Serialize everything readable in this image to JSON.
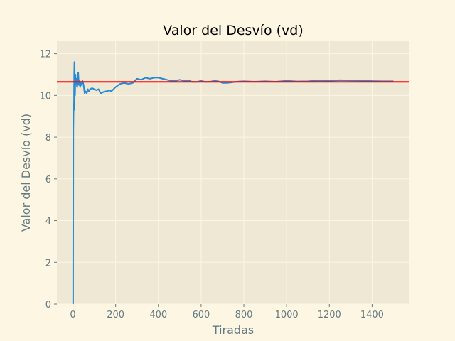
{
  "chart_data": {
    "type": "line",
    "title": "Valor del Desvío (vd)",
    "xlabel": "Tiradas",
    "ylabel": "Valor del Desvío (vd)",
    "xlim": [
      -75,
      1575
    ],
    "ylim": [
      0,
      12.6
    ],
    "xticks": [
      0,
      200,
      400,
      600,
      800,
      1000,
      1200,
      1400
    ],
    "yticks": [
      0,
      2,
      4,
      6,
      8,
      10,
      12
    ],
    "grid": true,
    "colors": {
      "figure_bg": "#fdf6e3",
      "plot_bg": "#eee8d5",
      "grid": "#fdf6e3",
      "series": "#268bd2",
      "reference": "#ff0000",
      "ticks": "#657b83"
    },
    "series": [
      {
        "x": [
          1,
          2,
          3,
          4,
          5,
          6,
          7,
          8,
          9,
          10,
          12,
          14,
          16,
          18,
          20,
          22,
          25,
          28,
          31,
          34,
          37,
          40,
          45,
          50,
          55,
          60,
          65,
          70,
          75,
          80,
          90,
          100,
          110,
          120,
          130,
          140,
          150,
          160,
          170,
          180,
          190,
          200,
          220,
          240,
          260,
          280,
          300,
          320,
          340,
          360,
          380,
          400,
          420,
          440,
          460,
          480,
          500,
          520,
          540,
          560,
          580,
          600,
          620,
          640,
          660,
          680,
          700,
          720,
          740,
          760,
          780,
          800,
          850,
          900,
          950,
          1000,
          1050,
          1100,
          1150,
          1200,
          1250,
          1300,
          1350,
          1400,
          1450,
          1500
        ],
        "y": [
          0,
          8.3,
          9.2,
          9.6,
          9.3,
          11.0,
          11.6,
          11.5,
          10.5,
          10.0,
          11.0,
          10.6,
          10.8,
          10.5,
          10.4,
          10.6,
          11.1,
          10.5,
          10.7,
          10.4,
          10.6,
          10.5,
          10.7,
          10.5,
          10.1,
          10.2,
          10.1,
          10.3,
          10.2,
          10.3,
          10.35,
          10.3,
          10.25,
          10.3,
          10.1,
          10.15,
          10.2,
          10.2,
          10.25,
          10.2,
          10.3,
          10.4,
          10.55,
          10.6,
          10.55,
          10.6,
          10.8,
          10.75,
          10.85,
          10.8,
          10.85,
          10.85,
          10.8,
          10.75,
          10.7,
          10.7,
          10.75,
          10.7,
          10.72,
          10.65,
          10.65,
          10.7,
          10.65,
          10.65,
          10.7,
          10.68,
          10.6,
          10.6,
          10.62,
          10.65,
          10.67,
          10.68,
          10.66,
          10.68,
          10.66,
          10.7,
          10.67,
          10.68,
          10.72,
          10.7,
          10.73,
          10.72,
          10.71,
          10.69,
          10.68,
          10.68
        ]
      }
    ],
    "reference_line": {
      "y": 10.65
    }
  }
}
